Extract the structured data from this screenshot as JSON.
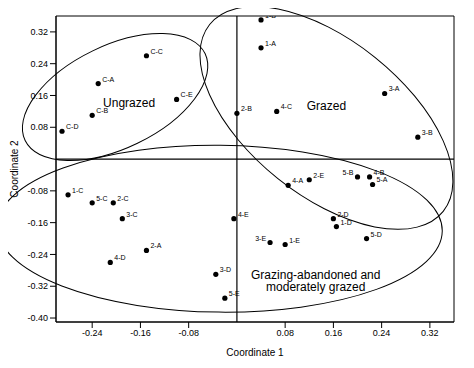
{
  "chart_data": {
    "type": "scatter",
    "x_label": "Coordinate 1",
    "y_label": "Coordinate 2",
    "xlim": [
      -0.3,
      0.36
    ],
    "ylim": [
      -0.41,
      0.36
    ],
    "xticks": [
      -0.24,
      -0.16,
      -0.08,
      0.08,
      0.16,
      0.24,
      0.32
    ],
    "yticks": [
      0.32,
      0.24,
      0.16,
      0.08,
      -0.08,
      -0.16,
      -0.24,
      -0.32,
      {
        "value": -0.4,
        "label": "-0.40"
      }
    ],
    "color": "#000000",
    "marker": "circle",
    "series": [
      {
        "name": "Ungrazed",
        "points": [
          {
            "label": "C-C",
            "x": -0.15,
            "y": 0.26
          },
          {
            "label": "C-A",
            "x": -0.23,
            "y": 0.19
          },
          {
            "label": "C-B",
            "x": -0.24,
            "y": 0.11
          },
          {
            "label": "C-E",
            "x": -0.1,
            "y": 0.15
          },
          {
            "label": "C-D",
            "x": -0.29,
            "y": 0.07
          }
        ]
      },
      {
        "name": "Grazed",
        "points": [
          {
            "label": "1-B",
            "x": 0.04,
            "y": 0.35
          },
          {
            "label": "1-A",
            "x": 0.04,
            "y": 0.28
          },
          {
            "label": "2-B",
            "x": 0.0,
            "y": 0.115
          },
          {
            "label": "4-C",
            "x": 0.066,
            "y": 0.12
          },
          {
            "label": "3-A",
            "x": 0.245,
            "y": 0.165
          },
          {
            "label": "3-B",
            "x": 0.3,
            "y": 0.055
          },
          {
            "label": "5-B",
            "x": 0.2,
            "y": -0.045
          },
          {
            "label": "4-B",
            "x": 0.22,
            "y": -0.045
          },
          {
            "label": "5-A",
            "x": 0.225,
            "y": -0.064
          }
        ]
      },
      {
        "name": "Grazing-abandoned and moderately grazed",
        "points": [
          {
            "label": "1-C",
            "x": -0.28,
            "y": -0.09
          },
          {
            "label": "5-C",
            "x": -0.24,
            "y": -0.11
          },
          {
            "label": "2-C",
            "x": -0.205,
            "y": -0.11
          },
          {
            "label": "3-C",
            "x": -0.19,
            "y": -0.15
          },
          {
            "label": "2-A",
            "x": -0.15,
            "y": -0.23
          },
          {
            "label": "4-D",
            "x": -0.21,
            "y": -0.26
          },
          {
            "label": "3-D",
            "x": -0.035,
            "y": -0.29
          },
          {
            "label": "5-E",
            "x": -0.02,
            "y": -0.35
          },
          {
            "label": "4-E",
            "x": -0.005,
            "y": -0.15
          },
          {
            "label": "4-A",
            "x": 0.085,
            "y": -0.066
          },
          {
            "label": "2-E",
            "x": 0.12,
            "y": -0.052
          },
          {
            "label": "2-D",
            "x": 0.16,
            "y": -0.15
          },
          {
            "label": "1-D",
            "x": 0.165,
            "y": -0.17
          },
          {
            "label": "5-D",
            "x": 0.215,
            "y": -0.2
          },
          {
            "label": "3-E",
            "x": 0.055,
            "y": -0.21
          },
          {
            "label": "1-E",
            "x": 0.08,
            "y": -0.215
          }
        ]
      }
    ]
  }
}
